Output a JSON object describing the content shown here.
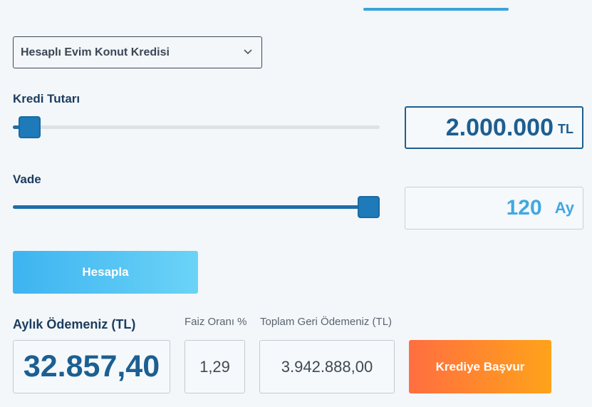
{
  "loan_type": {
    "selected": "Hesaplı Evim Konut Kredisi",
    "icon": "chevron-down-icon"
  },
  "amount": {
    "label": "Kredi Tutarı",
    "value": "2.000.000",
    "unit": "TL",
    "slider_fraction": 0.05
  },
  "term": {
    "label": "Vade",
    "value": "120",
    "unit": "Ay",
    "slider_fraction": 1.0
  },
  "calculate_button": "Hesapla",
  "results": {
    "monthly_label": "Aylık Ödemeniz (TL)",
    "monthly_value": "32.857,40",
    "rate_label": "Faiz Oranı %",
    "rate_value": "1,29",
    "total_label": "Toplam Geri Ödemeniz (TL)",
    "total_value": "3.942.888,00"
  },
  "apply_button": "Krediye Başvur",
  "colors": {
    "accent": "#1d6fa8",
    "calc_button": "#3db4f0",
    "apply_button": "#ff7a30"
  }
}
